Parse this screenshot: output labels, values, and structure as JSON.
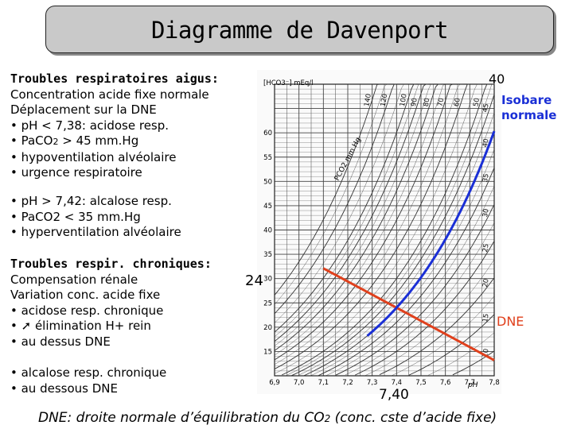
{
  "title": "Diagramme de Davenport",
  "acute": {
    "heading": "Troubles respiratoires aigus:",
    "line1": "Concentration acide fixe normale",
    "line2": "Déplacement sur la DNE",
    "b1": "• pH < 7,38: acidose resp.",
    "b2_pre": "• PaCO",
    "b2_sub": "2",
    "b2_post": " > 45 mm.Hg",
    "b3": "• hypoventilation alvéolaire",
    "b4": "• urgence respiratoire",
    "c1": "• pH > 7,42: alcalose resp.",
    "c2": "• PaCO2 < 35 mm.Hg",
    "c3": "• hyperventilation alvéolaire"
  },
  "chronic": {
    "heading": "Troubles respir. chroniques:",
    "line1": "Compensation rénale",
    "line2": "Variation conc. acide fixe",
    "b1": "• acidose resp. chronique",
    "b2": "• ➚ élimination H+ rein",
    "b3": "• au dessus DNE",
    "c1": "• alcalose resp. chronique",
    "c2": "• au dessous DNE"
  },
  "annotations": {
    "isobare_value": "40",
    "isobare_label1": "Isobare",
    "isobare_label2": "normale",
    "bicarb_value": "24",
    "dne_label": "DNE",
    "ph_value": "7,40"
  },
  "caption": {
    "pre": "DNE: droite normale d’équilibration du CO",
    "sub": "2",
    "post": " (conc. cste d’acide fixe)"
  },
  "chart_data": {
    "type": "line",
    "y_unit_label": "[HCO3⁻] mEq/l",
    "pco2_label": "PCO2 mm Hg",
    "x_unit_label": "pH",
    "x_ticks": [
      "6,9",
      "7,0",
      "7,1",
      "7,2",
      "7,3",
      "7,4",
      "7,5",
      "7,6",
      "7,7",
      "7,8"
    ],
    "y_ticks": [
      "15",
      "20",
      "25",
      "30",
      "35",
      "40",
      "45",
      "50",
      "55",
      "60"
    ],
    "isobar_values": [
      "140",
      "120",
      "100",
      "90",
      "80",
      "70",
      "60",
      "50",
      "45",
      "40",
      "35",
      "30",
      "25",
      "20",
      "15",
      "10"
    ],
    "xlim": [
      6.9,
      7.8
    ],
    "ylim": [
      10,
      70
    ],
    "normal_point": {
      "pH": 7.4,
      "HCO3": 24,
      "PCO2": 40
    },
    "colors": {
      "isobare": "#1a2fd6",
      "dne": "#e0401c",
      "grid": "#444444"
    }
  }
}
